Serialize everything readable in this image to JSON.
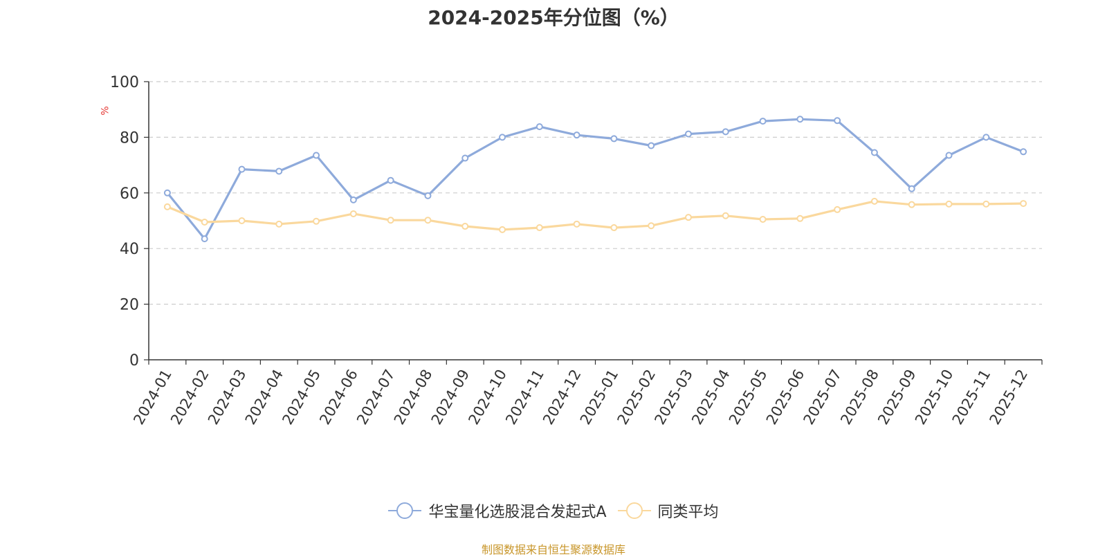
{
  "chart_data": {
    "type": "line",
    "title": "2024-2025年分位图（%）",
    "ylabel": "%",
    "xlabel": "",
    "ylim": [
      0,
      100
    ],
    "yticks": [
      "0",
      "20",
      "40",
      "60",
      "80",
      "100"
    ],
    "grid": true,
    "legend_position": "bottom",
    "categories": [
      "2024-01",
      "2024-02",
      "2024-03",
      "2024-04",
      "2024-05",
      "2024-06",
      "2024-07",
      "2024-08",
      "2024-09",
      "2024-10",
      "2024-11",
      "2024-12",
      "2025-01",
      "2025-02",
      "2025-03",
      "2025-04",
      "2025-05",
      "2025-06",
      "2025-07",
      "2025-08",
      "2025-09",
      "2025-10",
      "2025-11",
      "2025-12"
    ],
    "series": [
      {
        "name": "华宝量化选股混合发起式A",
        "color": "#8eaadb",
        "values": [
          60.0,
          43.5,
          68.5,
          67.8,
          73.5,
          57.5,
          64.5,
          59.0,
          72.5,
          80.0,
          83.8,
          80.8,
          79.5,
          77.0,
          81.2,
          82.0,
          85.8,
          86.5,
          86.0,
          74.5,
          61.5,
          73.5,
          80.0,
          74.8
        ]
      },
      {
        "name": "同类平均",
        "color": "#fad89d",
        "values": [
          55.0,
          49.5,
          50.0,
          48.8,
          49.8,
          52.5,
          50.2,
          50.2,
          48.0,
          46.8,
          47.5,
          48.8,
          47.5,
          48.2,
          51.2,
          51.8,
          50.5,
          50.8,
          54.0,
          57.0,
          55.8,
          56.0,
          56.0,
          56.2
        ]
      }
    ]
  },
  "source_text": "制图数据来自恒生聚源数据库"
}
